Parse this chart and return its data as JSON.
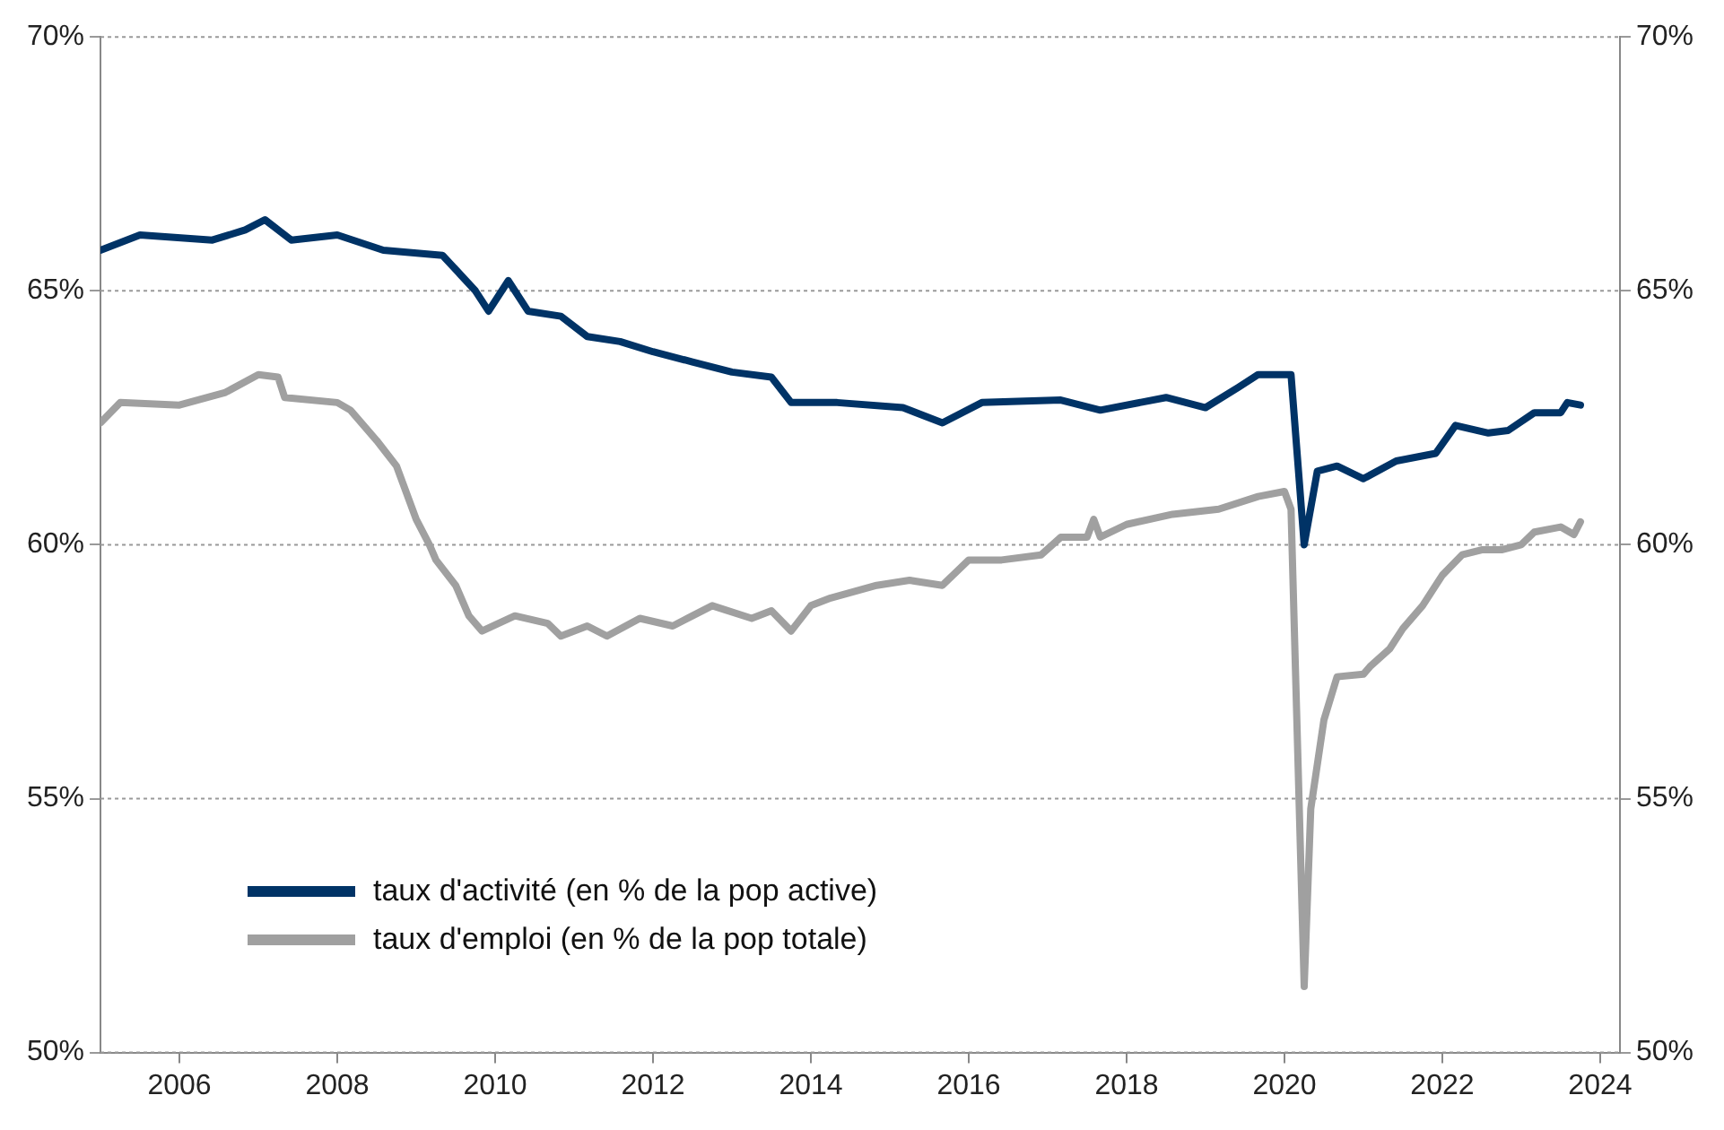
{
  "chart_data": {
    "type": "line",
    "xlim": [
      "2005-01",
      "2024-04"
    ],
    "xticks": [
      "2006",
      "2008",
      "2010",
      "2012",
      "2014",
      "2016",
      "2018",
      "2020",
      "2022",
      "2024"
    ],
    "ylim": [
      50,
      70
    ],
    "yticks": [
      {
        "value": 50,
        "label": "50%"
      },
      {
        "value": 55,
        "label": "55%"
      },
      {
        "value": 60,
        "label": "60%"
      },
      {
        "value": 65,
        "label": "65%"
      },
      {
        "value": 70,
        "label": "70%"
      }
    ],
    "y2lim": [
      50,
      70
    ],
    "y2ticks": [
      {
        "value": 50,
        "label": "50%"
      },
      {
        "value": 55,
        "label": "55%"
      },
      {
        "value": 60,
        "label": "60%"
      },
      {
        "value": 65,
        "label": "65%"
      },
      {
        "value": 70,
        "label": "70%"
      }
    ],
    "grid": "y",
    "legend": "bottom left",
    "marker": "none",
    "line_style": "solid",
    "series": [
      {
        "name": "taux d'activité (en % de la pop active)",
        "color": "#003366",
        "x": [
          "2005-01",
          "2005-07",
          "2006-06",
          "2006-11",
          "2007-02",
          "2007-06",
          "2008-01",
          "2008-08",
          "2009-05",
          "2009-10",
          "2009-12",
          "2010-03",
          "2010-06",
          "2010-11",
          "2011-03",
          "2011-08",
          "2012-01",
          "2012-07",
          "2013-01",
          "2013-07",
          "2013-10",
          "2014-05",
          "2015-03",
          "2015-09",
          "2016-03",
          "2017-03",
          "2017-09",
          "2018-07",
          "2019-01",
          "2019-06",
          "2019-09",
          "2020-02",
          "2020-04",
          "2020-06",
          "2020-09",
          "2021-01",
          "2021-06",
          "2021-12",
          "2022-03",
          "2022-08",
          "2022-11",
          "2023-03",
          "2023-07",
          "2023-08",
          "2023-10"
        ],
        "values": [
          65.8,
          66.1,
          66.0,
          66.2,
          66.4,
          66.0,
          66.1,
          65.8,
          65.7,
          65.0,
          64.6,
          65.2,
          64.6,
          64.5,
          64.1,
          64.0,
          63.8,
          63.6,
          63.4,
          63.3,
          62.8,
          62.8,
          62.7,
          62.4,
          62.8,
          62.85,
          62.65,
          62.9,
          62.7,
          63.1,
          63.35,
          63.35,
          60.0,
          61.45,
          61.55,
          61.3,
          61.65,
          61.8,
          62.35,
          62.2,
          62.25,
          62.6,
          62.6,
          62.8,
          62.75
        ]
      },
      {
        "name": "taux d'emploi (en % de la pop totale)",
        "color": "#a0a0a0",
        "x": [
          "2005-01",
          "2005-04",
          "2006-01",
          "2006-08",
          "2007-01",
          "2007-04",
          "2007-05",
          "2008-01",
          "2008-03",
          "2008-07",
          "2008-10",
          "2009-01",
          "2009-03",
          "2009-04",
          "2009-07",
          "2009-09",
          "2009-11",
          "2010-04",
          "2010-09",
          "2010-11",
          "2011-03",
          "2011-06",
          "2011-11",
          "2012-04",
          "2012-07",
          "2012-10",
          "2013-04",
          "2013-07",
          "2013-10",
          "2014-01",
          "2014-04",
          "2014-11",
          "2015-04",
          "2015-09",
          "2016-01",
          "2016-06",
          "2016-12",
          "2017-03",
          "2017-07",
          "2017-08",
          "2017-09",
          "2018-01",
          "2018-08",
          "2019-03",
          "2019-09",
          "2020-01",
          "2020-02",
          "2020-04",
          "2020-05",
          "2020-07",
          "2020-09",
          "2021-01",
          "2021-02",
          "2021-05",
          "2021-07",
          "2021-10",
          "2022-01",
          "2022-04",
          "2022-07",
          "2022-10",
          "2023-01",
          "2023-03",
          "2023-07",
          "2023-09",
          "2023-10"
        ],
        "values": [
          62.4,
          62.8,
          62.75,
          63.0,
          63.35,
          63.3,
          62.9,
          62.8,
          62.65,
          62.05,
          61.55,
          60.5,
          60.0,
          59.7,
          59.2,
          58.6,
          58.3,
          58.6,
          58.45,
          58.2,
          58.4,
          58.2,
          58.55,
          58.4,
          58.6,
          58.8,
          58.55,
          58.7,
          58.3,
          58.8,
          58.95,
          59.2,
          59.3,
          59.2,
          59.7,
          59.7,
          59.8,
          60.15,
          60.15,
          60.5,
          60.15,
          60.4,
          60.6,
          60.7,
          60.95,
          61.05,
          60.7,
          51.3,
          54.8,
          56.55,
          57.4,
          57.45,
          57.6,
          57.95,
          58.35,
          58.8,
          59.4,
          59.8,
          59.9,
          59.9,
          60.0,
          60.25,
          60.35,
          60.2,
          60.45
        ]
      }
    ]
  }
}
